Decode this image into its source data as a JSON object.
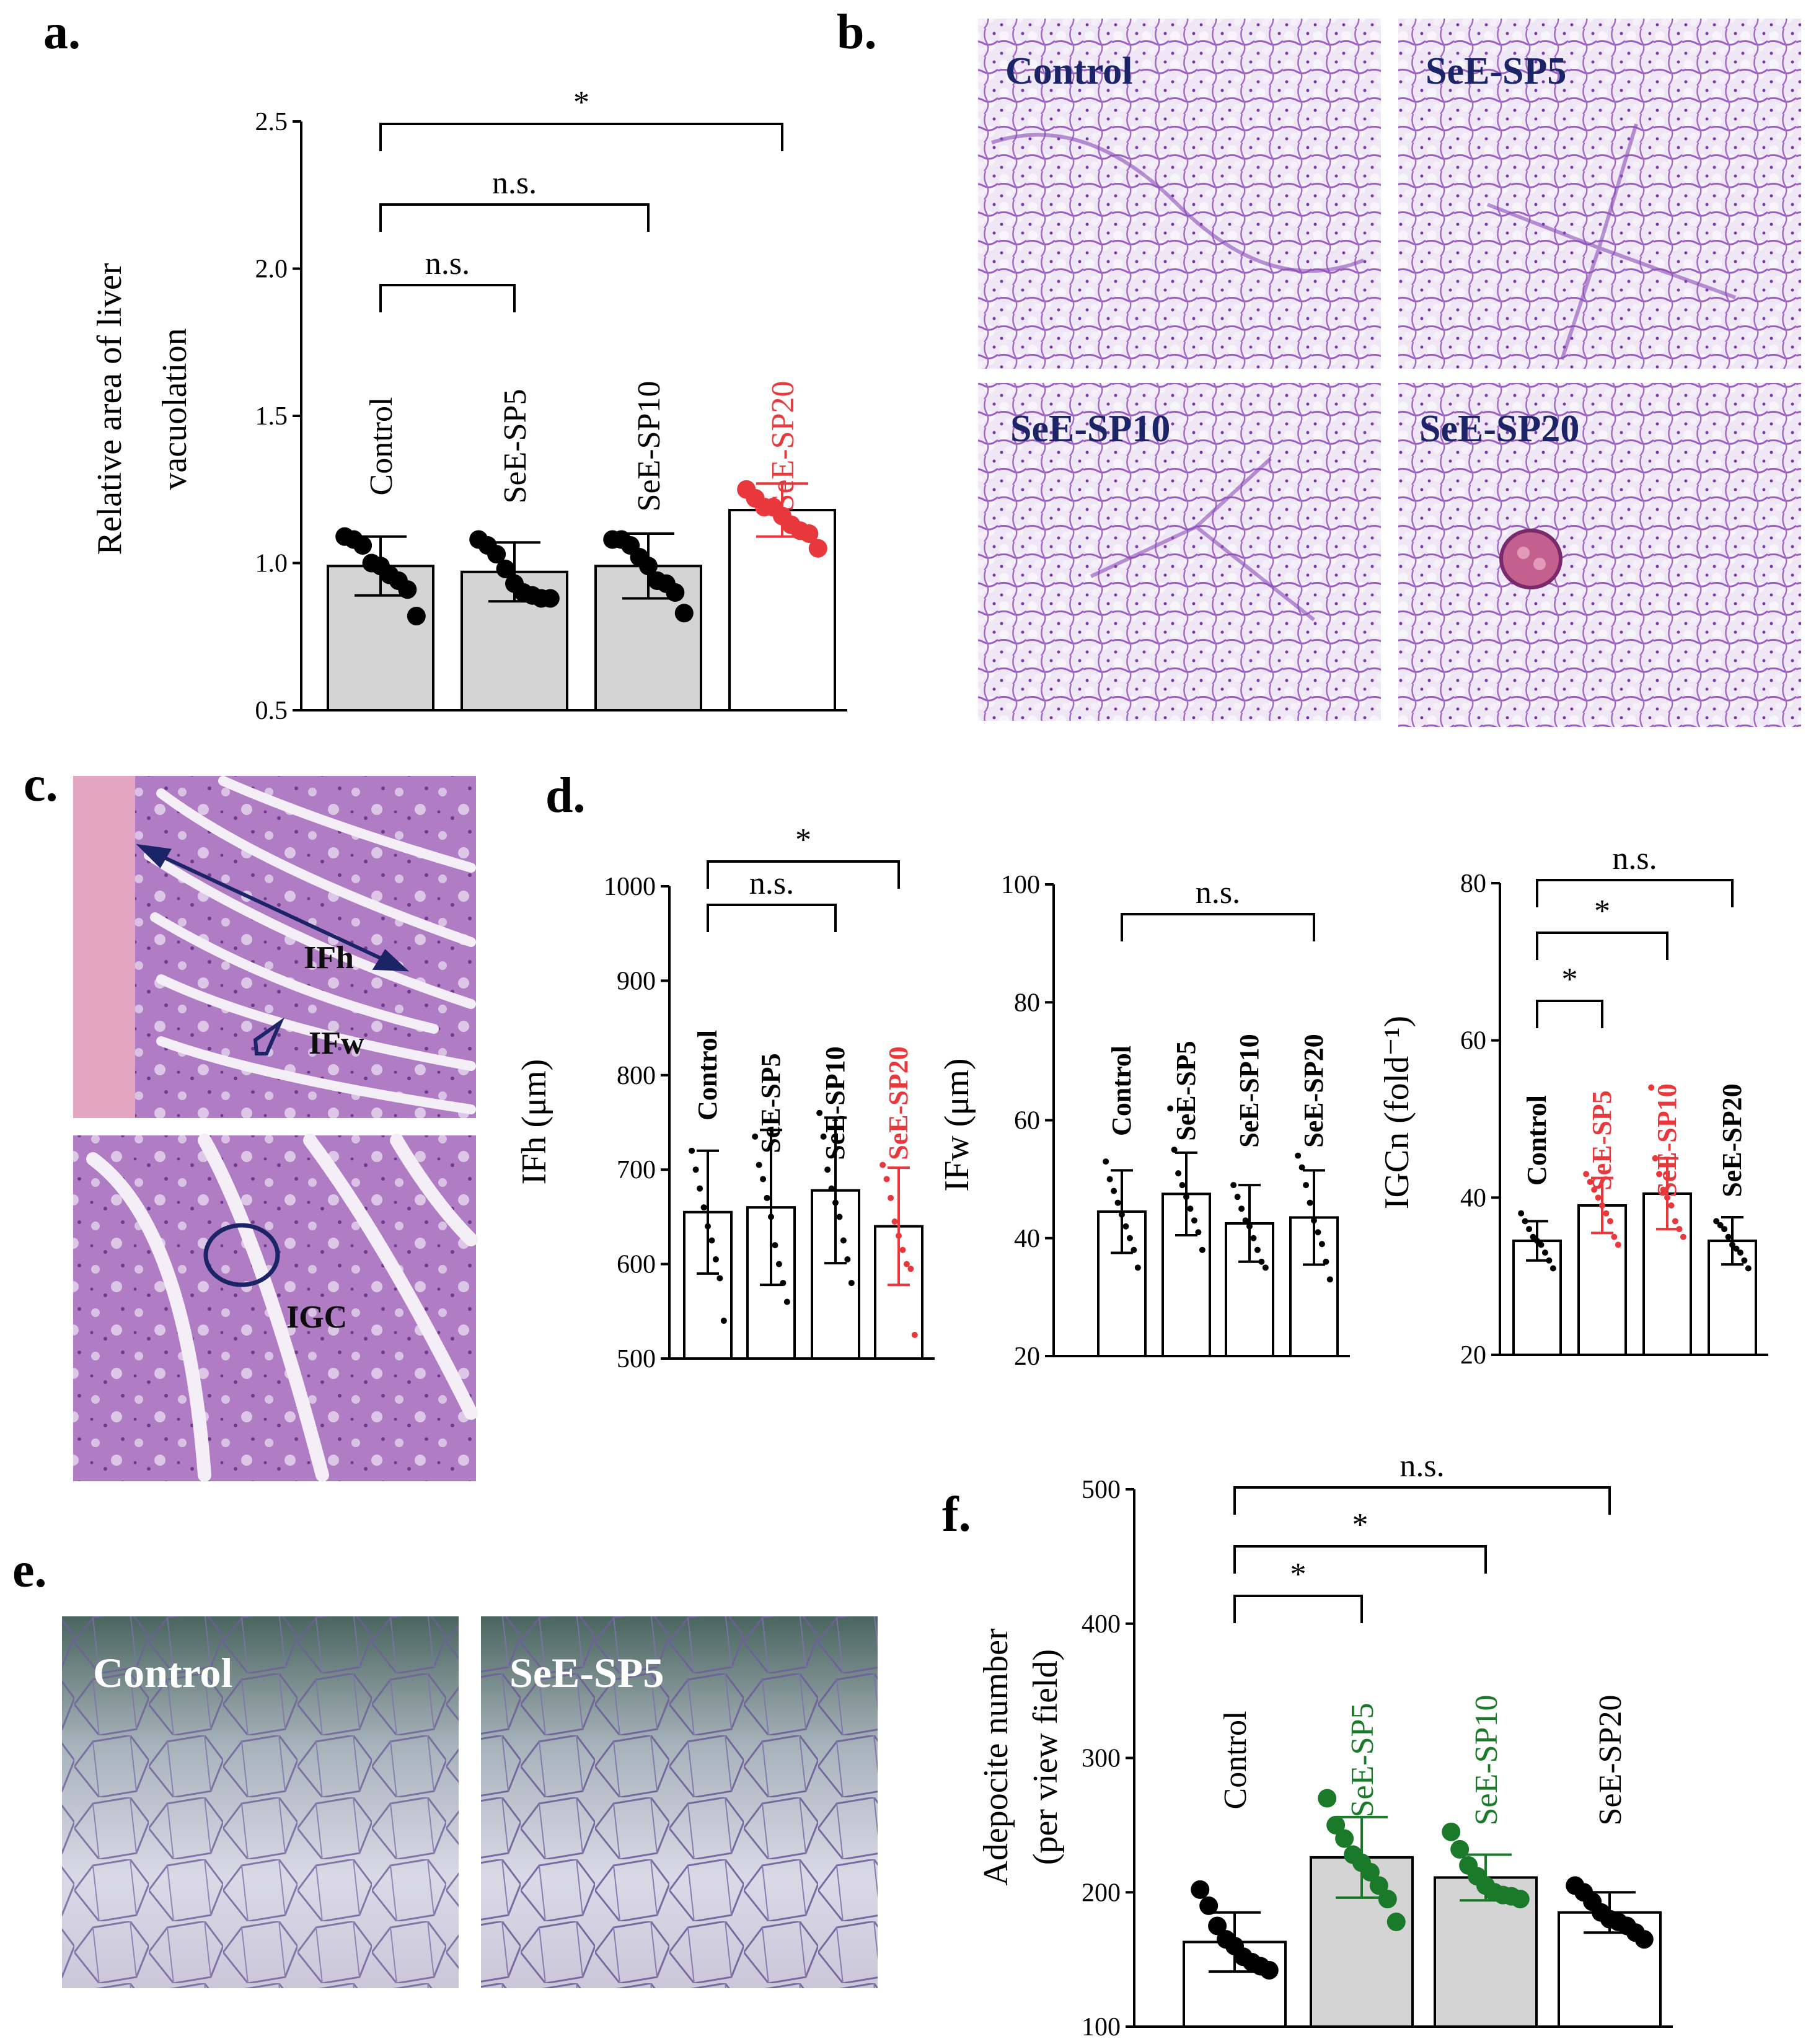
{
  "panels": {
    "a": "a.",
    "b": "b.",
    "c": "c.",
    "d": "d.",
    "e": "e.",
    "f": "f."
  },
  "colors": {
    "black": "#000000",
    "red": "#e8383b",
    "green": "#1a7a2a",
    "grey_bar": "#d4d4d4",
    "navy": "#1a2466"
  },
  "micrographs": {
    "liver": [
      "Control",
      "SeE-SP5",
      "SeE-SP10",
      "SeE-SP20"
    ],
    "intestine": {
      "ifh": "IFh",
      "ifw": "IFw",
      "igc": "IGC"
    },
    "fat": [
      "Control",
      "SeE-SP5"
    ]
  },
  "chart_data": [
    {
      "id": "a",
      "type": "bar",
      "categories": [
        "Control",
        "SeE-SP5",
        "SeE-SP10",
        "SeE-SP20"
      ],
      "category_colors": [
        "#000000",
        "#000000",
        "#000000",
        "#e8383b"
      ],
      "bar_fills": [
        "#d4d4d4",
        "#d4d4d4",
        "#d4d4d4",
        "#ffffff"
      ],
      "values": [
        0.99,
        0.97,
        0.99,
        1.18
      ],
      "errors": [
        0.1,
        0.1,
        0.11,
        0.09
      ],
      "points": [
        [
          1.09,
          1.08,
          1.06,
          1.0,
          0.99,
          0.96,
          0.94,
          0.91,
          0.82
        ],
        [
          1.08,
          1.06,
          1.03,
          0.98,
          0.93,
          0.9,
          0.89,
          0.88,
          0.88
        ],
        [
          1.08,
          1.08,
          1.06,
          1.02,
          0.99,
          0.94,
          0.93,
          0.9,
          0.83
        ],
        [
          1.25,
          1.22,
          1.19,
          1.19,
          1.16,
          1.13,
          1.11,
          1.1,
          1.05
        ]
      ],
      "ylabel": [
        "Relative area of liver",
        "vacuolation"
      ],
      "ylim": [
        0.5,
        2.5
      ],
      "yticks": [
        "0.5",
        "1.0",
        "1.5",
        "2.0",
        "2.5"
      ],
      "comparisons": [
        {
          "from": 0,
          "to": 1,
          "label": "n.s."
        },
        {
          "from": 0,
          "to": 2,
          "label": "n.s."
        },
        {
          "from": 0,
          "to": 3,
          "label": "*"
        }
      ]
    },
    {
      "id": "d1",
      "type": "bar",
      "categories": [
        "Control",
        "SeE-SP5",
        "SeE-SP10",
        "SeE-SP20"
      ],
      "category_colors": [
        "#000000",
        "#000000",
        "#000000",
        "#e8383b"
      ],
      "values": [
        655,
        660,
        678,
        640
      ],
      "errors": [
        65,
        82,
        77,
        62
      ],
      "points": [
        [
          720,
          700,
          680,
          660,
          640,
          625,
          605,
          585,
          540
        ],
        [
          735,
          705,
          690,
          670,
          650,
          620,
          600,
          580,
          560
        ],
        [
          760,
          735,
          700,
          680,
          665,
          650,
          625,
          605,
          580
        ],
        [
          705,
          690,
          670,
          645,
          630,
          615,
          600,
          595,
          525
        ]
      ],
      "ylabel": "IFh (μm)",
      "ylim": [
        500,
        1000
      ],
      "yticks": [
        "500",
        "600",
        "700",
        "800",
        "900",
        "1000"
      ],
      "comparisons": [
        {
          "from": 0,
          "to": 2,
          "label": "n.s."
        },
        {
          "from": 0,
          "to": 3,
          "label": "*"
        }
      ]
    },
    {
      "id": "d2",
      "type": "bar",
      "categories": [
        "Control",
        "SeE-SP5",
        "SeE-SP10",
        "SeE-SP20"
      ],
      "category_colors": [
        "#000000",
        "#000000",
        "#000000",
        "#000000"
      ],
      "values": [
        44.5,
        47.5,
        42.5,
        43.5
      ],
      "errors": [
        7,
        7,
        6.5,
        8
      ],
      "points": [
        [
          53,
          50,
          48,
          46,
          44,
          42,
          40,
          38,
          35
        ],
        [
          62,
          55,
          51,
          49,
          47,
          45,
          43,
          41,
          38
        ],
        [
          49,
          47,
          45,
          43,
          42,
          40,
          38,
          36,
          35
        ],
        [
          54,
          52,
          49,
          46,
          43,
          41,
          39,
          36,
          33
        ]
      ],
      "ylabel": "IFw (μm)",
      "ylim": [
        20,
        100
      ],
      "yticks": [
        "20",
        "40",
        "60",
        "80",
        "100"
      ],
      "comparisons": [
        {
          "from": 0,
          "to": 3,
          "label": "n.s."
        }
      ]
    },
    {
      "id": "d3",
      "type": "bar",
      "categories": [
        "Control",
        "SeE-SP5",
        "SeE-SP10",
        "SeE-SP20"
      ],
      "category_colors": [
        "#000000",
        "#e8383b",
        "#e8383b",
        "#000000"
      ],
      "values": [
        34.5,
        39,
        40.5,
        34.5
      ],
      "errors": [
        2.5,
        3.5,
        4.5,
        3
      ],
      "points": [
        [
          38,
          37,
          36,
          35,
          34.5,
          34,
          33,
          32,
          31
        ],
        [
          43,
          42,
          41,
          40,
          39,
          38,
          37,
          35,
          34
        ],
        [
          54,
          45,
          43,
          41,
          40,
          39,
          37,
          36,
          35
        ],
        [
          37,
          36.5,
          36,
          35,
          34,
          33.5,
          33,
          32,
          31
        ]
      ],
      "ylabel": "IGCn (fold⁻¹)",
      "ylim": [
        20,
        80
      ],
      "yticks": [
        "20",
        "40",
        "60",
        "80"
      ],
      "comparisons": [
        {
          "from": 0,
          "to": 1,
          "label": "*"
        },
        {
          "from": 0,
          "to": 2,
          "label": "*"
        },
        {
          "from": 0,
          "to": 3,
          "label": "n.s."
        }
      ]
    },
    {
      "id": "f",
      "type": "bar",
      "categories": [
        "Control",
        "SeE-SP5",
        "SeE-SP10",
        "SeE-SP20"
      ],
      "category_colors": [
        "#000000",
        "#1a7a2a",
        "#1a7a2a",
        "#000000"
      ],
      "bar_fills": [
        "#ffffff",
        "#d4d4d4",
        "#d4d4d4",
        "#ffffff"
      ],
      "values": [
        163,
        226,
        211,
        185
      ],
      "errors": [
        22,
        30,
        17,
        15
      ],
      "points": [
        [
          202,
          190,
          175,
          165,
          160,
          152,
          148,
          145,
          142
        ],
        [
          270,
          250,
          240,
          228,
          222,
          215,
          205,
          195,
          178
        ],
        [
          245,
          232,
          220,
          212,
          205,
          200,
          198,
          197,
          195
        ],
        [
          205,
          200,
          193,
          185,
          180,
          178,
          175,
          170,
          165
        ]
      ],
      "ylabel": [
        "Adepocite number",
        "(per view field)"
      ],
      "ylim": [
        100,
        500
      ],
      "yticks": [
        "100",
        "200",
        "300",
        "400",
        "500"
      ],
      "comparisons": [
        {
          "from": 0,
          "to": 1,
          "label": "*"
        },
        {
          "from": 0,
          "to": 2,
          "label": "*"
        },
        {
          "from": 0,
          "to": 3,
          "label": "n.s."
        }
      ]
    }
  ]
}
